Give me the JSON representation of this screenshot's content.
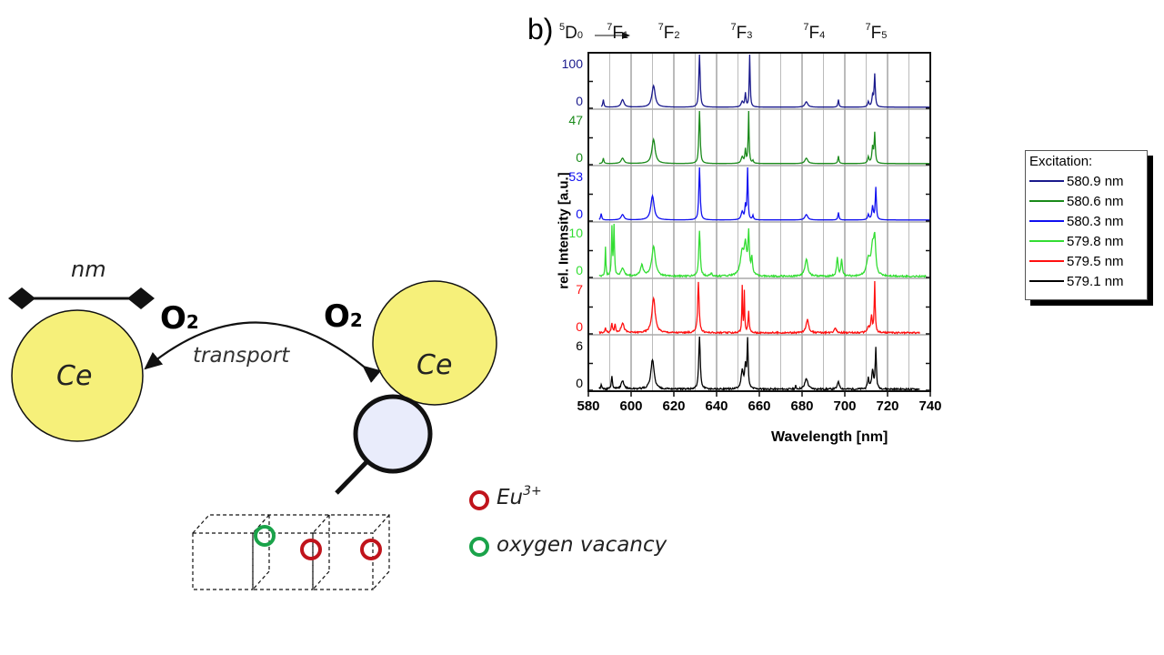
{
  "diagram": {
    "scale_label": "nm",
    "o2_left": "O",
    "o2_right": "O",
    "o2_subscript": "2",
    "transport_label": "transport",
    "particle_left": "Ce",
    "particle_right": "Ce",
    "legend": [
      {
        "label": "Eu",
        "sup": "3+",
        "color": "#c0141c"
      },
      {
        "label": "oxygen vacancy",
        "sup": "",
        "color": "#1aa34a"
      }
    ]
  },
  "chart_data": {
    "type": "line",
    "panel_label": "b)",
    "transition_prefix": {
      "upper": "D",
      "upper_sup": "5",
      "upper_sub": "0"
    },
    "transitions": [
      {
        "sup": "7",
        "main": "F",
        "sub": "1",
        "x": 592
      },
      {
        "sup": "7",
        "main": "F",
        "sub": "2",
        "x": 616
      },
      {
        "sup": "7",
        "main": "F",
        "sub": "3",
        "x": 650
      },
      {
        "sup": "7",
        "main": "F",
        "sub": "4",
        "x": 684
      },
      {
        "sup": "7",
        "main": "F",
        "sub": "5",
        "x": 713
      }
    ],
    "xlabel": "Wavelength [nm]",
    "ylabel": "rel. Intensity [a.u.]",
    "xlim": [
      580,
      740
    ],
    "xticks": [
      "580",
      "600",
      "620",
      "640",
      "660",
      "680",
      "700",
      "720",
      "740"
    ],
    "grid": true,
    "legend_title": "Excitation:",
    "legend_position": "right",
    "series": [
      {
        "name": "580.9 nm",
        "color": "#1a1a8c",
        "ymax_label": "100",
        "zero_label": "0",
        "range": [
          586,
          740
        ],
        "peaks": [
          [
            587,
            0.14,
            0.3
          ],
          [
            596,
            0.14,
            0.8
          ],
          [
            610.5,
            0.4,
            0.9
          ],
          [
            632,
            1.0,
            0.35
          ],
          [
            652,
            0.1,
            0.6
          ],
          [
            653.5,
            0.25,
            0.3
          ],
          [
            655.5,
            1.0,
            0.25
          ],
          [
            682,
            0.1,
            0.8
          ],
          [
            697,
            0.14,
            0.3
          ],
          [
            711,
            0.1,
            0.4
          ],
          [
            713,
            0.2,
            0.4
          ],
          [
            714,
            0.6,
            0.3
          ]
        ]
      },
      {
        "name": "580.6 nm",
        "color": "#1a8a1a",
        "ymax_label": "47",
        "zero_label": "0",
        "range": [
          585,
          740
        ],
        "peaks": [
          [
            587,
            0.1,
            0.3
          ],
          [
            596,
            0.1,
            0.8
          ],
          [
            610.5,
            0.45,
            0.9
          ],
          [
            632,
            1.0,
            0.35
          ],
          [
            652,
            0.12,
            0.6
          ],
          [
            653.5,
            0.25,
            0.3
          ],
          [
            655,
            1.0,
            0.25
          ],
          [
            657,
            0.05,
            0.3
          ],
          [
            682,
            0.1,
            0.8
          ],
          [
            697,
            0.14,
            0.3
          ],
          [
            711,
            0.12,
            0.4
          ],
          [
            713,
            0.3,
            0.4
          ],
          [
            714,
            0.55,
            0.3
          ]
        ]
      },
      {
        "name": "580.3 nm",
        "color": "#1010f0",
        "ymax_label": "53",
        "zero_label": "0",
        "range": [
          585,
          740
        ],
        "peaks": [
          [
            586,
            0.12,
            0.3
          ],
          [
            596,
            0.1,
            0.8
          ],
          [
            610,
            0.45,
            0.9
          ],
          [
            632,
            1.0,
            0.35
          ],
          [
            652,
            0.15,
            0.6
          ],
          [
            653.5,
            0.25,
            0.3
          ],
          [
            654.5,
            1.0,
            0.25
          ],
          [
            657,
            0.08,
            0.3
          ],
          [
            682,
            0.1,
            0.8
          ],
          [
            697,
            0.14,
            0.3
          ],
          [
            711,
            0.1,
            0.4
          ],
          [
            713,
            0.25,
            0.4
          ],
          [
            714.5,
            0.6,
            0.3
          ]
        ]
      },
      {
        "name": "579.8 nm",
        "color": "#33dd33",
        "ymax_label": "10",
        "zero_label": "0",
        "range": [
          585,
          738
        ],
        "peaks": [
          [
            588,
            0.55,
            0.2
          ],
          [
            591,
            0.9,
            0.25
          ],
          [
            592,
            0.95,
            0.25
          ],
          [
            596,
            0.15,
            0.8
          ],
          [
            605,
            0.2,
            0.8
          ],
          [
            610.5,
            0.55,
            1.0
          ],
          [
            632,
            0.85,
            0.4
          ],
          [
            637.5,
            0.05,
            0.5
          ],
          [
            652,
            0.45,
            1.0
          ],
          [
            653.5,
            0.5,
            0.6
          ],
          [
            655,
            0.75,
            0.4
          ],
          [
            656.5,
            0.3,
            0.4
          ],
          [
            682,
            0.32,
            0.8
          ],
          [
            696.5,
            0.35,
            0.4
          ],
          [
            698.5,
            0.3,
            0.4
          ],
          [
            711,
            0.3,
            1.0
          ],
          [
            713,
            0.5,
            0.8
          ],
          [
            714,
            0.6,
            0.5
          ]
        ]
      },
      {
        "name": "579.5 nm",
        "color": "#ff1010",
        "ymax_label": "7",
        "zero_label": "0",
        "range": [
          585,
          735
        ],
        "peaks": [
          [
            588,
            0.08,
            0.3
          ],
          [
            591,
            0.18,
            0.3
          ],
          [
            592.5,
            0.15,
            0.3
          ],
          [
            596,
            0.18,
            0.8
          ],
          [
            610.5,
            0.65,
            0.9
          ],
          [
            631.5,
            0.95,
            0.4
          ],
          [
            652,
            0.85,
            0.2
          ],
          [
            653,
            0.75,
            0.2
          ],
          [
            655,
            0.4,
            0.3
          ],
          [
            682.5,
            0.25,
            0.7
          ],
          [
            695.5,
            0.1,
            0.6
          ],
          [
            711,
            0.1,
            0.6
          ],
          [
            712.5,
            0.3,
            0.4
          ],
          [
            714,
            0.95,
            0.25
          ]
        ]
      },
      {
        "name": "579.1 nm",
        "color": "#000000",
        "ymax_label": "6",
        "zero_label": "0",
        "range": [
          585,
          735
        ],
        "peaks": [
          [
            586,
            0.08,
            0.3
          ],
          [
            591,
            0.25,
            0.3
          ],
          [
            596,
            0.15,
            0.8
          ],
          [
            610,
            0.55,
            0.9
          ],
          [
            632,
            1.0,
            0.4
          ],
          [
            652,
            0.35,
            0.6
          ],
          [
            653.5,
            0.4,
            0.4
          ],
          [
            654.5,
            0.9,
            0.3
          ],
          [
            677,
            0.06,
            0.2
          ],
          [
            682,
            0.2,
            0.8
          ],
          [
            697,
            0.15,
            0.5
          ],
          [
            711,
            0.2,
            0.4
          ],
          [
            713,
            0.35,
            0.5
          ],
          [
            714.5,
            0.75,
            0.3
          ]
        ]
      }
    ]
  }
}
